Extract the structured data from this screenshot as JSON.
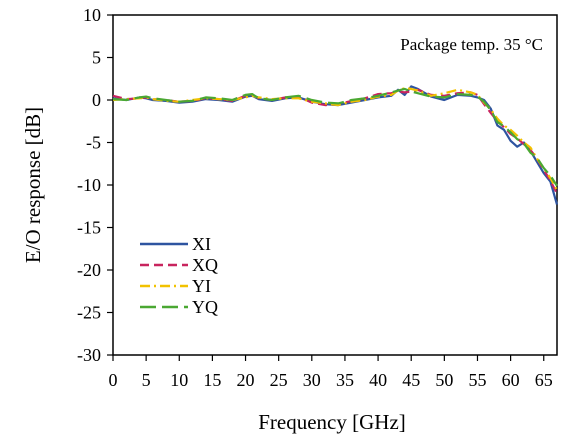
{
  "chart_data": {
    "type": "line",
    "xlabel": "Frequency [GHz]",
    "ylabel": "E/O response [dB]",
    "annotation": "Package temp. 35 °C",
    "xlim": [
      0,
      67
    ],
    "ylim": [
      -30,
      10
    ],
    "xticks": [
      "0",
      "5",
      "10",
      "15",
      "20",
      "25",
      "30",
      "35",
      "40",
      "45",
      "50",
      "55",
      "60",
      "65"
    ],
    "xtick_values": [
      0,
      5,
      10,
      15,
      20,
      25,
      30,
      35,
      40,
      45,
      50,
      55,
      60,
      65
    ],
    "yticks": [
      "10",
      "5",
      "0",
      "-5",
      "-10",
      "-15",
      "-20",
      "-25",
      "-30"
    ],
    "ytick_values": [
      10,
      5,
      0,
      -5,
      -10,
      -15,
      -20,
      -25,
      -30
    ],
    "grid": false,
    "legend_position": "bottom-left",
    "series": [
      {
        "name": "XI",
        "color": "#2e54a0",
        "dash": "solid",
        "x": [
          0,
          2,
          4,
          5,
          6,
          8,
          10,
          12,
          14,
          16,
          18,
          20,
          21,
          22,
          24,
          26,
          28,
          30,
          32,
          34,
          36,
          38,
          40,
          42,
          43,
          44,
          45,
          46,
          48,
          50,
          52,
          54,
          55,
          56,
          57,
          58,
          59,
          60,
          61,
          62,
          63,
          64,
          65,
          66,
          67
        ],
        "y": [
          0.2,
          0.0,
          0.3,
          0.2,
          0.0,
          -0.1,
          -0.3,
          -0.2,
          0.1,
          0.0,
          -0.2,
          0.4,
          0.5,
          0.1,
          -0.1,
          0.2,
          0.3,
          -0.2,
          -0.5,
          -0.6,
          -0.3,
          0.0,
          0.3,
          0.5,
          1.2,
          0.6,
          1.6,
          1.3,
          0.4,
          0.0,
          0.6,
          0.5,
          0.3,
          0.0,
          -1.0,
          -3.0,
          -3.5,
          -4.8,
          -5.5,
          -5.0,
          -6.0,
          -7.3,
          -8.6,
          -9.6,
          -12.3
        ]
      },
      {
        "name": "XQ",
        "color": "#c8245e",
        "dash": "dashed",
        "x": [
          0,
          2,
          4,
          5,
          6,
          8,
          10,
          12,
          14,
          16,
          18,
          20,
          21,
          22,
          24,
          26,
          28,
          30,
          32,
          34,
          36,
          38,
          40,
          42,
          43,
          44,
          45,
          46,
          48,
          50,
          52,
          54,
          55,
          56,
          57,
          58,
          59,
          60,
          61,
          62,
          63,
          64,
          65,
          66,
          67
        ],
        "y": [
          0.5,
          0.1,
          0.2,
          0.3,
          0.1,
          0.0,
          -0.2,
          -0.1,
          0.2,
          0.1,
          -0.1,
          0.5,
          0.6,
          0.2,
          0.0,
          0.3,
          0.4,
          -0.3,
          -0.6,
          -0.5,
          -0.1,
          0.2,
          0.7,
          0.8,
          1.0,
          0.9,
          1.0,
          1.2,
          0.6,
          0.5,
          0.8,
          0.9,
          0.6,
          -0.5,
          -1.5,
          -2.5,
          -3.2,
          -4.0,
          -4.5,
          -5.2,
          -5.9,
          -6.9,
          -8.2,
          -9.5,
          -11.0
        ]
      },
      {
        "name": "YI",
        "color": "#f2c200",
        "dash": "dashdot",
        "x": [
          0,
          2,
          4,
          5,
          6,
          8,
          10,
          12,
          14,
          16,
          18,
          20,
          21,
          22,
          24,
          26,
          28,
          30,
          32,
          34,
          36,
          38,
          40,
          42,
          43,
          44,
          45,
          46,
          48,
          50,
          52,
          54,
          55,
          56,
          57,
          58,
          59,
          60,
          61,
          62,
          63,
          64,
          65,
          66,
          67
        ],
        "y": [
          0.0,
          0.1,
          0.2,
          0.3,
          0.1,
          -0.1,
          -0.2,
          0.0,
          0.2,
          0.1,
          0.0,
          0.3,
          0.5,
          0.3,
          0.1,
          0.2,
          0.2,
          -0.2,
          -0.4,
          -0.6,
          -0.2,
          0.0,
          0.4,
          0.6,
          1.1,
          1.4,
          1.3,
          1.1,
          0.5,
          0.8,
          1.2,
          0.9,
          0.6,
          -0.3,
          -1.1,
          -2.2,
          -3.0,
          -3.5,
          -4.2,
          -5.0,
          -5.6,
          -6.9,
          -8.0,
          -9.2,
          -10.6
        ]
      },
      {
        "name": "YQ",
        "color": "#4aa832",
        "dash": "longdash",
        "x": [
          0,
          2,
          4,
          5,
          6,
          8,
          10,
          12,
          14,
          16,
          18,
          20,
          21,
          22,
          24,
          26,
          28,
          30,
          32,
          34,
          36,
          38,
          40,
          42,
          43,
          44,
          45,
          46,
          48,
          50,
          52,
          54,
          55,
          56,
          57,
          58,
          59,
          60,
          61,
          62,
          63,
          64,
          65,
          66,
          67
        ],
        "y": [
          0.1,
          0.0,
          0.3,
          0.4,
          0.2,
          0.0,
          -0.2,
          -0.1,
          0.3,
          0.2,
          0.0,
          0.6,
          0.7,
          0.2,
          0.0,
          0.3,
          0.5,
          0.0,
          -0.3,
          -0.4,
          0.0,
          0.2,
          0.5,
          0.9,
          1.1,
          1.3,
          1.0,
          0.8,
          0.4,
          0.3,
          0.7,
          0.6,
          0.4,
          -0.2,
          -1.2,
          -2.6,
          -3.1,
          -3.8,
          -4.6,
          -5.1,
          -6.2,
          -6.8,
          -8.0,
          -8.9,
          -10.1
        ]
      }
    ]
  }
}
